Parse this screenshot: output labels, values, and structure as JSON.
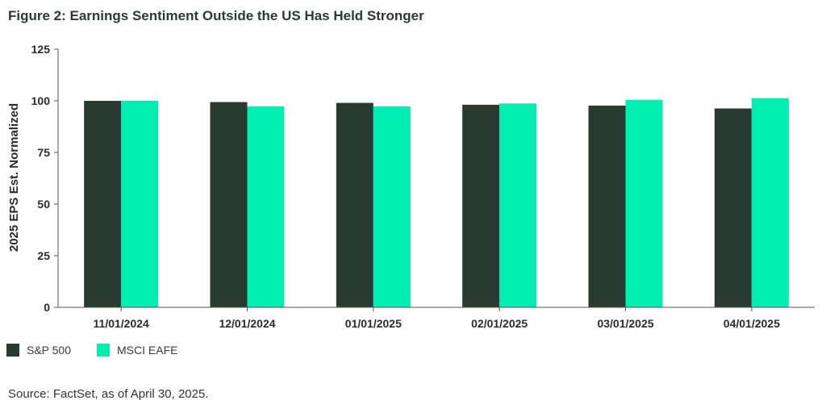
{
  "figure": {
    "title": "Figure 2: Earnings Sentiment Outside the US Has Held Stronger",
    "source": "Source: FactSet, as of April 30, 2025."
  },
  "colors": {
    "sp500": "#283a31",
    "eafe": "#00efb0",
    "axis": "#555555",
    "text": "#333333"
  },
  "chart_data": {
    "type": "bar",
    "title": "Figure 2: Earnings Sentiment Outside the US Has Held Stronger",
    "xlabel": "",
    "ylabel": "2025 EPS Est. Normalized",
    "ylim": [
      0,
      125
    ],
    "yticks": [
      0,
      25,
      50,
      75,
      100,
      125
    ],
    "grid": false,
    "legend": "bottom-left",
    "categories": [
      "11/01/2024",
      "12/01/2024",
      "01/01/2025",
      "02/01/2025",
      "03/01/2025",
      "04/01/2025"
    ],
    "series": [
      {
        "name": "S&P 500",
        "values": [
          100,
          99.4,
          99.0,
          98.1,
          97.7,
          96.3
        ]
      },
      {
        "name": "MSCI EAFE",
        "values": [
          100,
          97.3,
          97.3,
          98.7,
          100.5,
          101.3
        ]
      }
    ]
  }
}
